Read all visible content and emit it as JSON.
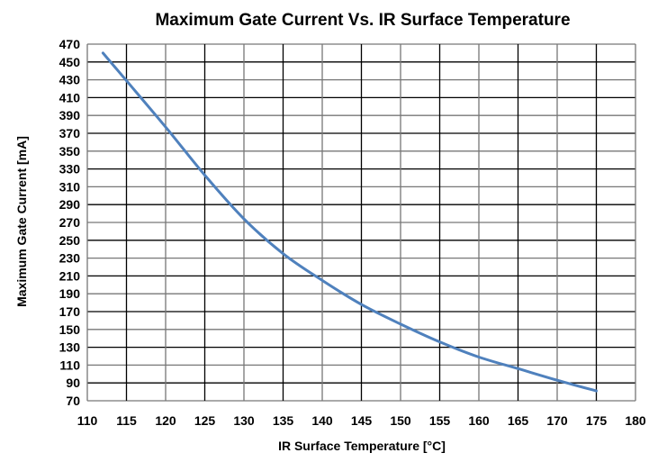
{
  "chart_data": {
    "type": "line",
    "title": "Maximum Gate Current Vs. IR Surface Temperature",
    "xlabel": "IR Surface Temperature [°C]",
    "ylabel": "Maximum Gate Current [mA]",
    "xlim": [
      110,
      180
    ],
    "ylim": [
      70,
      470
    ],
    "xticks": [
      110,
      115,
      120,
      125,
      130,
      135,
      140,
      145,
      150,
      155,
      160,
      165,
      170,
      175,
      180
    ],
    "yticks": [
      70,
      90,
      110,
      130,
      150,
      170,
      190,
      210,
      230,
      250,
      270,
      290,
      310,
      330,
      350,
      370,
      390,
      410,
      430,
      450,
      470
    ],
    "grid": true,
    "legend": "none",
    "series": [
      {
        "color": "#4F81BD",
        "x": [
          112,
          115,
          120,
          125,
          130,
          135,
          140,
          145,
          150,
          155,
          160,
          165,
          170,
          175
        ],
        "y": [
          460,
          429,
          377,
          323,
          274,
          235,
          205,
          178,
          156,
          136,
          119,
          106,
          93,
          81
        ]
      }
    ]
  }
}
